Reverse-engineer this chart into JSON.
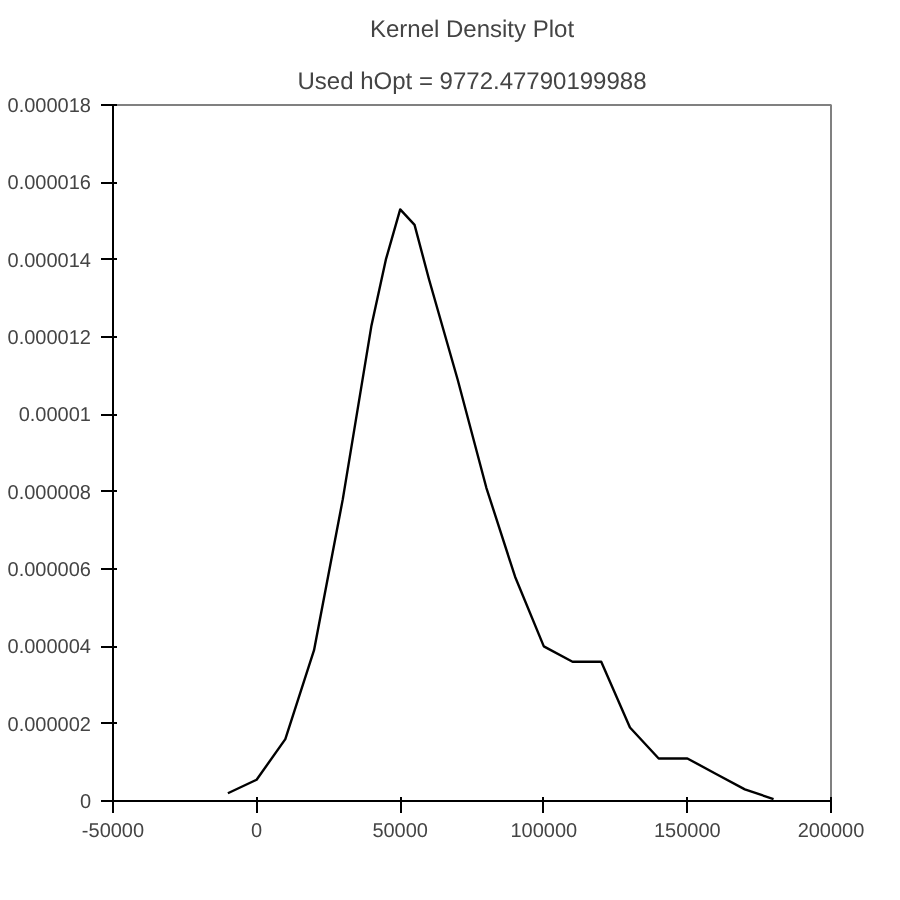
{
  "chart_data": {
    "type": "line",
    "title": "Kernel Density Plot",
    "subtitle": "Used hOpt = 9772.47790199988",
    "x": [
      -10000,
      0,
      10000,
      20000,
      30000,
      40000,
      45000,
      50000,
      55000,
      60000,
      70000,
      80000,
      90000,
      100000,
      110000,
      120000,
      130000,
      140000,
      150000,
      160000,
      170000,
      180000
    ],
    "series": [
      {
        "color": "#000000",
        "values": [
          2e-07,
          5.5e-07,
          1.6e-06,
          3.9e-06,
          7.8e-06,
          1.23e-05,
          1.4e-05,
          1.53e-05,
          1.49e-05,
          1.35e-05,
          1.09e-05,
          8.1e-06,
          5.8e-06,
          4e-06,
          3.6e-06,
          3.6e-06,
          1.9e-06,
          1.1e-06,
          1.1e-06,
          7e-07,
          3e-07,
          5e-08
        ]
      }
    ],
    "xlim": [
      -50000,
      200000
    ],
    "xticks": [
      -50000,
      0,
      50000,
      100000,
      150000,
      200000
    ],
    "ylim": [
      0,
      1.8e-05
    ],
    "yticks": [
      {
        "value": 0,
        "label": "0"
      },
      {
        "value": 2e-06,
        "label": "0.000002"
      },
      {
        "value": 4e-06,
        "label": "0.000004"
      },
      {
        "value": 6e-06,
        "label": "0.000006"
      },
      {
        "value": 8e-06,
        "label": "0.000008"
      },
      {
        "value": 1e-05,
        "label": "0.00001"
      },
      {
        "value": 1.2e-05,
        "label": "0.000012"
      },
      {
        "value": 1.4e-05,
        "label": "0.000014"
      },
      {
        "value": 1.6e-05,
        "label": "0.000016"
      },
      {
        "value": 1.8e-05,
        "label": "0.000018"
      }
    ],
    "grid": false,
    "marker": "none",
    "line_style": "solid"
  }
}
